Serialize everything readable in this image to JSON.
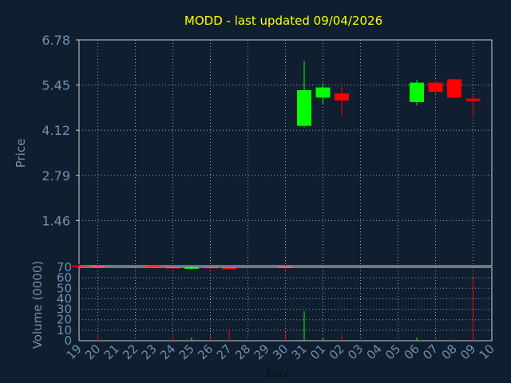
{
  "chart_data": [
    {
      "type": "candlestick",
      "title": "MODD - last updated 09/04/2026",
      "ylabel": "Price",
      "ylim": [
        0.13,
        6.78
      ],
      "yticks": [
        "6.78",
        "5.45",
        "4.12",
        "2.79",
        "1.46"
      ],
      "x": [
        "19",
        "20",
        "21",
        "22",
        "23",
        "24",
        "25",
        "26",
        "27",
        "28",
        "29",
        "30",
        "31",
        "01",
        "02",
        "03",
        "04",
        "05",
        "06",
        "07",
        "08",
        "09",
        "10"
      ],
      "candles": [
        {
          "x": "19",
          "open": 0.13,
          "high": 0.18,
          "low": 0.08,
          "close": 0.1
        },
        {
          "x": "20",
          "open": 0.12,
          "high": 0.16,
          "low": 0.07,
          "close": 0.09
        },
        {
          "x": "23",
          "open": 0.13,
          "high": 0.16,
          "low": 0.07,
          "close": 0.09
        },
        {
          "x": "24",
          "open": 0.1,
          "high": 0.13,
          "low": 0.03,
          "close": 0.05
        },
        {
          "x": "25",
          "open": 0.04,
          "high": 0.11,
          "low": 0.02,
          "close": 0.09
        },
        {
          "x": "26",
          "open": 0.1,
          "high": 0.13,
          "low": 0.03,
          "close": 0.06
        },
        {
          "x": "27",
          "open": 0.07,
          "high": 0.09,
          "low": 0.02,
          "close": 0.04
        },
        {
          "x": "30",
          "open": 0.11,
          "high": 0.14,
          "low": 0.03,
          "close": 0.06
        },
        {
          "x": "31",
          "open": 4.25,
          "high": 6.15,
          "low": 4.2,
          "close": 5.3
        },
        {
          "x": "01",
          "open": 5.08,
          "high": 5.5,
          "low": 4.9,
          "close": 5.38
        },
        {
          "x": "02",
          "open": 5.2,
          "high": 5.4,
          "low": 4.55,
          "close": 5.0
        },
        {
          "x": "06",
          "open": 4.95,
          "high": 5.6,
          "low": 4.85,
          "close": 5.52
        },
        {
          "x": "07",
          "open": 5.52,
          "high": 5.55,
          "low": 5.2,
          "close": 5.25
        },
        {
          "x": "08",
          "open": 5.62,
          "high": 5.65,
          "low": 5.05,
          "close": 5.08
        },
        {
          "x": "09",
          "open": 5.05,
          "high": 5.15,
          "low": 4.5,
          "close": 4.98
        }
      ]
    },
    {
      "type": "bar",
      "ylabel": "Volume (0000)",
      "xlabel": "Day",
      "ylim": [
        0,
        70
      ],
      "yticks": [
        "0",
        "10",
        "20",
        "30",
        "40",
        "50",
        "60",
        "70"
      ],
      "x": [
        "19",
        "20",
        "21",
        "22",
        "23",
        "24",
        "25",
        "26",
        "27",
        "28",
        "29",
        "30",
        "31",
        "01",
        "02",
        "03",
        "04",
        "05",
        "06",
        "07",
        "08",
        "09",
        "10"
      ],
      "values": [
        {
          "x": "20",
          "value": 6,
          "up": false
        },
        {
          "x": "24",
          "value": 4,
          "up": false
        },
        {
          "x": "25",
          "value": 3,
          "up": true
        },
        {
          "x": "26",
          "value": 5,
          "up": false
        },
        {
          "x": "27",
          "value": 10,
          "up": false
        },
        {
          "x": "30",
          "value": 8,
          "up": false
        },
        {
          "x": "31",
          "value": 28,
          "up": true
        },
        {
          "x": "01",
          "value": 3,
          "up": true
        },
        {
          "x": "02",
          "value": 6,
          "up": false
        },
        {
          "x": "06",
          "value": 3,
          "up": true
        },
        {
          "x": "07",
          "value": 2,
          "up": false
        },
        {
          "x": "08",
          "value": 2,
          "up": false
        },
        {
          "x": "09",
          "value": 61,
          "up": false
        }
      ]
    }
  ],
  "colors": {
    "background": "#0f1f2f",
    "plot_background": "#0f1f2f",
    "axis_text": "#7090b0",
    "title_text": "#ffff00",
    "grid": "#9aa7b4",
    "up": "#00ff00",
    "down": "#ff0000"
  }
}
